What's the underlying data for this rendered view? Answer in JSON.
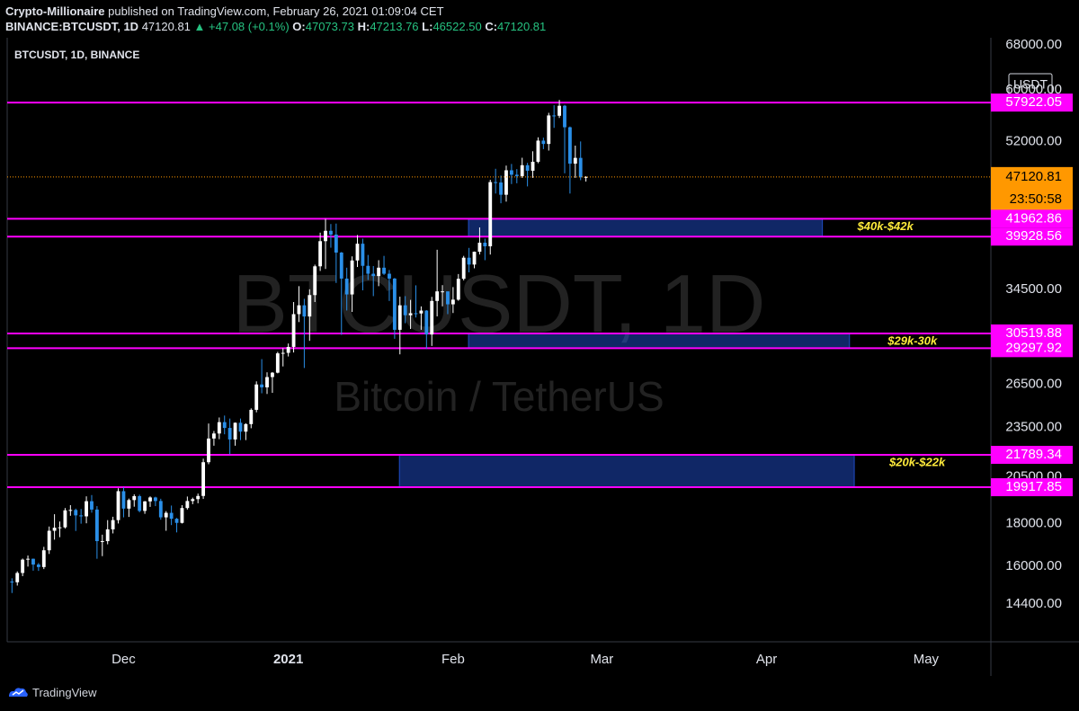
{
  "header": {
    "author": "Crypto-Millionaire",
    "published": "published on TradingView.com, February 26, 2021 01:09:04 CET",
    "symbol": "BINANCE:BTCUSDT, 1D",
    "last": "47120.81",
    "change": "▲ +47.08 (+0.1%)",
    "ohlc": [
      {
        "label": "O:",
        "value": "47073.73"
      },
      {
        "label": "H:",
        "value": "47213.76"
      },
      {
        "label": "L:",
        "value": "46522.50"
      },
      {
        "label": "C:",
        "value": "47120.81"
      }
    ]
  },
  "footer": {
    "brand": "TradingView"
  },
  "chart_data": {
    "type": "candlestick",
    "title": "BTCUSDT, 1D, BINANCE",
    "watermark": "BTCUSDT, 1D",
    "watermark_subtitle": "Bitcoin / TetherUS",
    "currency": "USDT",
    "log_scale": true,
    "grid": false,
    "up_color": "#ffffff",
    "down_color": "#2a8fe8",
    "open": [
      15330,
      15300,
      15700,
      16290,
      16330,
      16070,
      15960,
      16720,
      17650,
      17800,
      17820,
      18680,
      18700,
      18420,
      18370,
      19160,
      18720,
      17150,
      17150,
      17720,
      18180,
      19700,
      18770,
      19220,
      19430,
      18650,
      19150,
      19360,
      19170,
      18320,
      18550,
      18250,
      18040,
      18800,
      19170,
      19270,
      19440,
      21350,
      22800,
      23120,
      23860,
      23480,
      22740,
      23820,
      23240,
      23730,
      24690,
      26490,
      26280,
      27040,
      27370,
      28880,
      28920,
      29400,
      32200,
      33000,
      31990,
      33950,
      36770,
      39430,
      40580,
      40150,
      38200,
      35540,
      34010,
      37370,
      39150,
      36820,
      36020,
      35790,
      36630,
      36020,
      35540,
      30830,
      33000,
      32100,
      32280,
      32260,
      32520,
      30430,
      33400,
      34300,
      34300,
      33090,
      33520,
      35520,
      37660,
      36950,
      38290,
      39260,
      38870,
      46450,
      46400,
      44850,
      48000,
      47410,
      47230,
      48680,
      47940,
      49150,
      52120,
      51640,
      55890,
      55840,
      57410,
      54090,
      48890,
      49680,
      47073.73
    ],
    "high": [
      15470,
      15770,
      16340,
      16480,
      16340,
      16140,
      16880,
      17860,
      18480,
      18110,
      18800,
      18950,
      18770,
      18750,
      19420,
      19490,
      18900,
      17460,
      18180,
      18350,
      19860,
      19920,
      19300,
      19530,
      19510,
      19170,
      19420,
      19400,
      19290,
      18640,
      18930,
      18290,
      18950,
      19410,
      19350,
      19570,
      21560,
      23770,
      23280,
      24170,
      24300,
      24100,
      23840,
      24100,
      23790,
      24790,
      26720,
      28420,
      27400,
      27420,
      29000,
      29300,
      29680,
      33300,
      34800,
      33600,
      34500,
      36940,
      40370,
      41950,
      41350,
      41400,
      38260,
      36630,
      37800,
      40100,
      39700,
      37950,
      36800,
      37400,
      37850,
      36400,
      35600,
      33800,
      33850,
      33500,
      34880,
      32900,
      32560,
      33780,
      38500,
      34900,
      34300,
      34710,
      35990,
      37850,
      38700,
      38310,
      40960,
      39700,
      46750,
      48200,
      47300,
      48630,
      48850,
      48160,
      49700,
      49000,
      50600,
      52600,
      52550,
      56300,
      57500,
      58350,
      57550,
      54200,
      51400,
      52000,
      47213.76
    ],
    "low": [
      14850,
      15160,
      15560,
      15980,
      15800,
      15790,
      15870,
      16550,
      17220,
      17340,
      17760,
      18400,
      17640,
      18000,
      18020,
      18560,
      16330,
      16450,
      17000,
      17520,
      18010,
      18320,
      18340,
      18870,
      18580,
      18500,
      18860,
      18900,
      18200,
      17650,
      17930,
      17570,
      18010,
      18720,
      19000,
      19050,
      19280,
      21230,
      22350,
      22760,
      23070,
      21820,
      22350,
      22700,
      22700,
      23460,
      24520,
      25850,
      25800,
      25880,
      27320,
      27850,
      28630,
      28950,
      31500,
      27730,
      29900,
      33300,
      36300,
      36500,
      38720,
      35110,
      30400,
      32530,
      32400,
      36700,
      34400,
      35400,
      33850,
      34800,
      35900,
      33400,
      30070,
      28800,
      31400,
      30900,
      31900,
      30830,
      29240,
      29480,
      32000,
      32900,
      32200,
      32300,
      33420,
      35360,
      36160,
      36570,
      38000,
      37400,
      37990,
      45000,
      43800,
      44000,
      46200,
      46300,
      47000,
      45900,
      47000,
      48950,
      50900,
      50700,
      54000,
      55500,
      47600,
      45000,
      47000,
      46700,
      46522.5
    ],
    "close": [
      15300,
      15700,
      16290,
      16330,
      16070,
      15960,
      16720,
      17650,
      17800,
      17820,
      18680,
      18700,
      18420,
      18370,
      19160,
      18720,
      17150,
      17150,
      17720,
      18180,
      19700,
      18770,
      19220,
      19430,
      18650,
      19150,
      19360,
      19170,
      18320,
      18550,
      18250,
      18040,
      18800,
      19170,
      19270,
      19440,
      21350,
      22800,
      23120,
      23860,
      23480,
      22740,
      23820,
      23240,
      23730,
      24690,
      26490,
      26280,
      27040,
      27370,
      28880,
      28920,
      29400,
      32200,
      33000,
      31990,
      33950,
      36770,
      39430,
      40580,
      40150,
      38200,
      35540,
      34010,
      37370,
      39150,
      36820,
      36020,
      35790,
      36630,
      36020,
      35540,
      30830,
      33000,
      32100,
      32280,
      32260,
      32520,
      30430,
      33400,
      34300,
      34300,
      33090,
      33520,
      35520,
      37660,
      36950,
      38290,
      39260,
      38870,
      46450,
      46400,
      44850,
      48000,
      47410,
      47230,
      48680,
      47940,
      49150,
      52120,
      51640,
      55890,
      55840,
      57410,
      54090,
      48890,
      49680,
      47073.73,
      47120.81
    ],
    "last_price_color": "#ff9800",
    "countdown": "23:50:58",
    "xlim": [
      -0.9,
      184.2
    ],
    "xticks": [
      {
        "value": 21,
        "label": "Dec"
      },
      {
        "value": 52,
        "label": "2021"
      },
      {
        "value": 83,
        "label": "Feb"
      },
      {
        "value": 111,
        "label": "Mar"
      },
      {
        "value": 142,
        "label": "Apr"
      },
      {
        "value": 172,
        "label": "May"
      }
    ],
    "ylim": [
      12970,
      69340
    ],
    "yticks": [
      {
        "value": 68000,
        "label": "68000.00"
      },
      {
        "value": 60000,
        "label": "60000.00"
      },
      {
        "value": 52000,
        "label": "52000.00"
      },
      {
        "value": 34500,
        "label": "34500.00"
      },
      {
        "value": 26500,
        "label": "26500.00"
      },
      {
        "value": 23500,
        "label": "23500.00"
      },
      {
        "value": 20500,
        "label": "20500.00"
      },
      {
        "value": 18000,
        "label": "18000.00"
      },
      {
        "value": 16000,
        "label": "16000.00"
      },
      {
        "value": 14400,
        "label": "14400.00"
      }
    ],
    "levels": {
      "color": "#ff00ff",
      "values": [
        57922.05,
        41962.86,
        39928.56,
        30519.88,
        29297.92,
        21789.34,
        19917.85
      ]
    },
    "zones": [
      {
        "label": "$40k-$42k",
        "x": [
          85.9,
          152.5
        ],
        "y": [
          39928.56,
          41962.86
        ],
        "color": "#2962ff"
      },
      {
        "label": "$29k-30k",
        "x": [
          85.9,
          157.6
        ],
        "y": [
          29297.92,
          30519.88
        ],
        "color": "#2962ff"
      },
      {
        "label": "$20k-$22k",
        "x": [
          72.9,
          158.5
        ],
        "y": [
          19917.85,
          21789.34
        ],
        "color": "#2962ff"
      }
    ],
    "zone_label_color": "#ffeb3b"
  }
}
